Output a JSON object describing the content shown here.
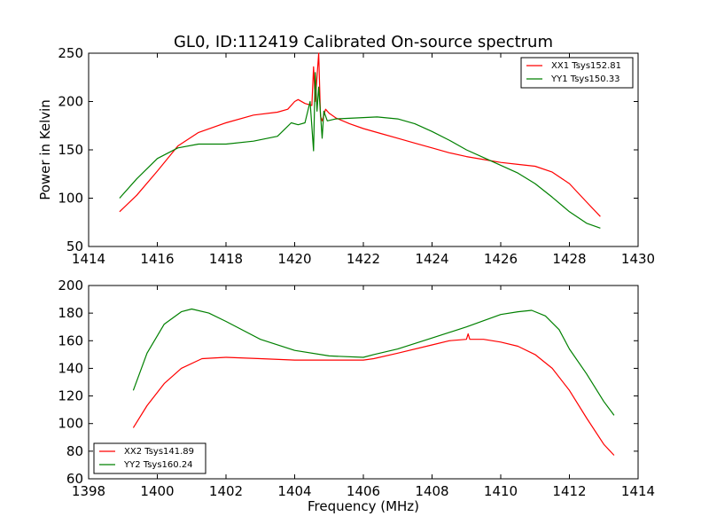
{
  "chart_data": [
    {
      "type": "line",
      "title": "GL0, ID:112419 Calibrated On-source spectrum",
      "xlabel": "",
      "ylabel": "Power in Kelvin",
      "xlim": [
        1414,
        1430
      ],
      "ylim": [
        50,
        250
      ],
      "xticks": [
        "1414",
        "1416",
        "1418",
        "1420",
        "1422",
        "1424",
        "1426",
        "1428",
        "1430"
      ],
      "yticks": [
        "50",
        "100",
        "150",
        "200",
        "250"
      ],
      "legend_position": "top-right",
      "series": [
        {
          "name": "XX1 Tsys152.81",
          "color": "#ff0000",
          "x": [
            1414.9,
            1415.4,
            1416.0,
            1416.6,
            1417.2,
            1418.0,
            1418.8,
            1419.5,
            1419.8,
            1420.0,
            1420.1,
            1420.3,
            1420.5,
            1420.55,
            1420.6,
            1420.7,
            1420.75,
            1420.8,
            1420.9,
            1421.0,
            1421.2,
            1421.6,
            1422.0,
            1422.5,
            1423.0,
            1423.5,
            1424.0,
            1424.5,
            1425.0,
            1425.5,
            1426.0,
            1426.5,
            1427.0,
            1427.5,
            1428.0,
            1428.5,
            1428.9
          ],
          "y": [
            86,
            103,
            128,
            154,
            168,
            178,
            186,
            189,
            192,
            200,
            202,
            198,
            196,
            236,
            200,
            250,
            185,
            180,
            192,
            188,
            183,
            177,
            172,
            167,
            162,
            157,
            152,
            147,
            143,
            140,
            137,
            135,
            133,
            127,
            115,
            96,
            81
          ]
        },
        {
          "name": "YY1 Tsys150.33",
          "color": "#008000",
          "x": [
            1414.9,
            1415.4,
            1416.0,
            1416.6,
            1417.2,
            1418.0,
            1418.8,
            1419.5,
            1419.7,
            1419.9,
            1420.1,
            1420.3,
            1420.45,
            1420.55,
            1420.6,
            1420.65,
            1420.7,
            1420.8,
            1420.85,
            1420.95,
            1421.2,
            1421.8,
            1422.4,
            1423.0,
            1423.5,
            1424.0,
            1424.5,
            1425.0,
            1425.5,
            1426.0,
            1426.5,
            1427.0,
            1427.5,
            1428.0,
            1428.5,
            1428.9
          ],
          "y": [
            100,
            120,
            141,
            152,
            156,
            156,
            159,
            164,
            171,
            178,
            176,
            178,
            200,
            149,
            230,
            190,
            215,
            162,
            190,
            180,
            182,
            183,
            184,
            182,
            177,
            169,
            160,
            150,
            142,
            134,
            126,
            115,
            101,
            86,
            74,
            69
          ]
        }
      ]
    },
    {
      "type": "line",
      "title": "",
      "xlabel": "Frequency (MHz)",
      "ylabel": "",
      "xlim": [
        1398,
        1414
      ],
      "ylim": [
        60,
        200
      ],
      "xticks": [
        "1398",
        "1400",
        "1402",
        "1404",
        "1406",
        "1408",
        "1410",
        "1412",
        "1414"
      ],
      "yticks": [
        "60",
        "80",
        "100",
        "120",
        "140",
        "160",
        "180",
        "200"
      ],
      "legend_position": "bottom-left",
      "series": [
        {
          "name": "XX2 Tsys141.89",
          "color": "#ff0000",
          "x": [
            1399.3,
            1399.7,
            1400.2,
            1400.7,
            1401.3,
            1402.0,
            1403.0,
            1404.0,
            1405.0,
            1406.0,
            1406.3,
            1407.0,
            1408.0,
            1408.5,
            1409.0,
            1409.05,
            1409.1,
            1409.5,
            1410.0,
            1410.5,
            1411.0,
            1411.5,
            1412.0,
            1412.5,
            1413.0,
            1413.3
          ],
          "y": [
            97,
            113,
            129,
            140,
            147,
            148,
            147,
            146,
            146,
            146,
            147,
            151,
            157,
            160,
            161,
            165,
            161,
            161,
            159,
            156,
            150,
            140,
            124,
            104,
            85,
            77
          ]
        },
        {
          "name": "YY2 Tsys160.24",
          "color": "#008000",
          "x": [
            1399.3,
            1399.7,
            1400.2,
            1400.7,
            1401.0,
            1401.5,
            1402.0,
            1403.0,
            1404.0,
            1405.0,
            1406.0,
            1406.3,
            1407.0,
            1408.0,
            1409.0,
            1410.0,
            1410.5,
            1410.9,
            1411.3,
            1411.7,
            1412.0,
            1412.5,
            1413.0,
            1413.3
          ],
          "y": [
            124,
            151,
            172,
            181,
            183,
            180,
            174,
            161,
            153,
            149,
            148,
            150,
            154,
            162,
            170,
            179,
            181,
            182,
            178,
            168,
            154,
            136,
            116,
            106
          ]
        }
      ]
    }
  ]
}
